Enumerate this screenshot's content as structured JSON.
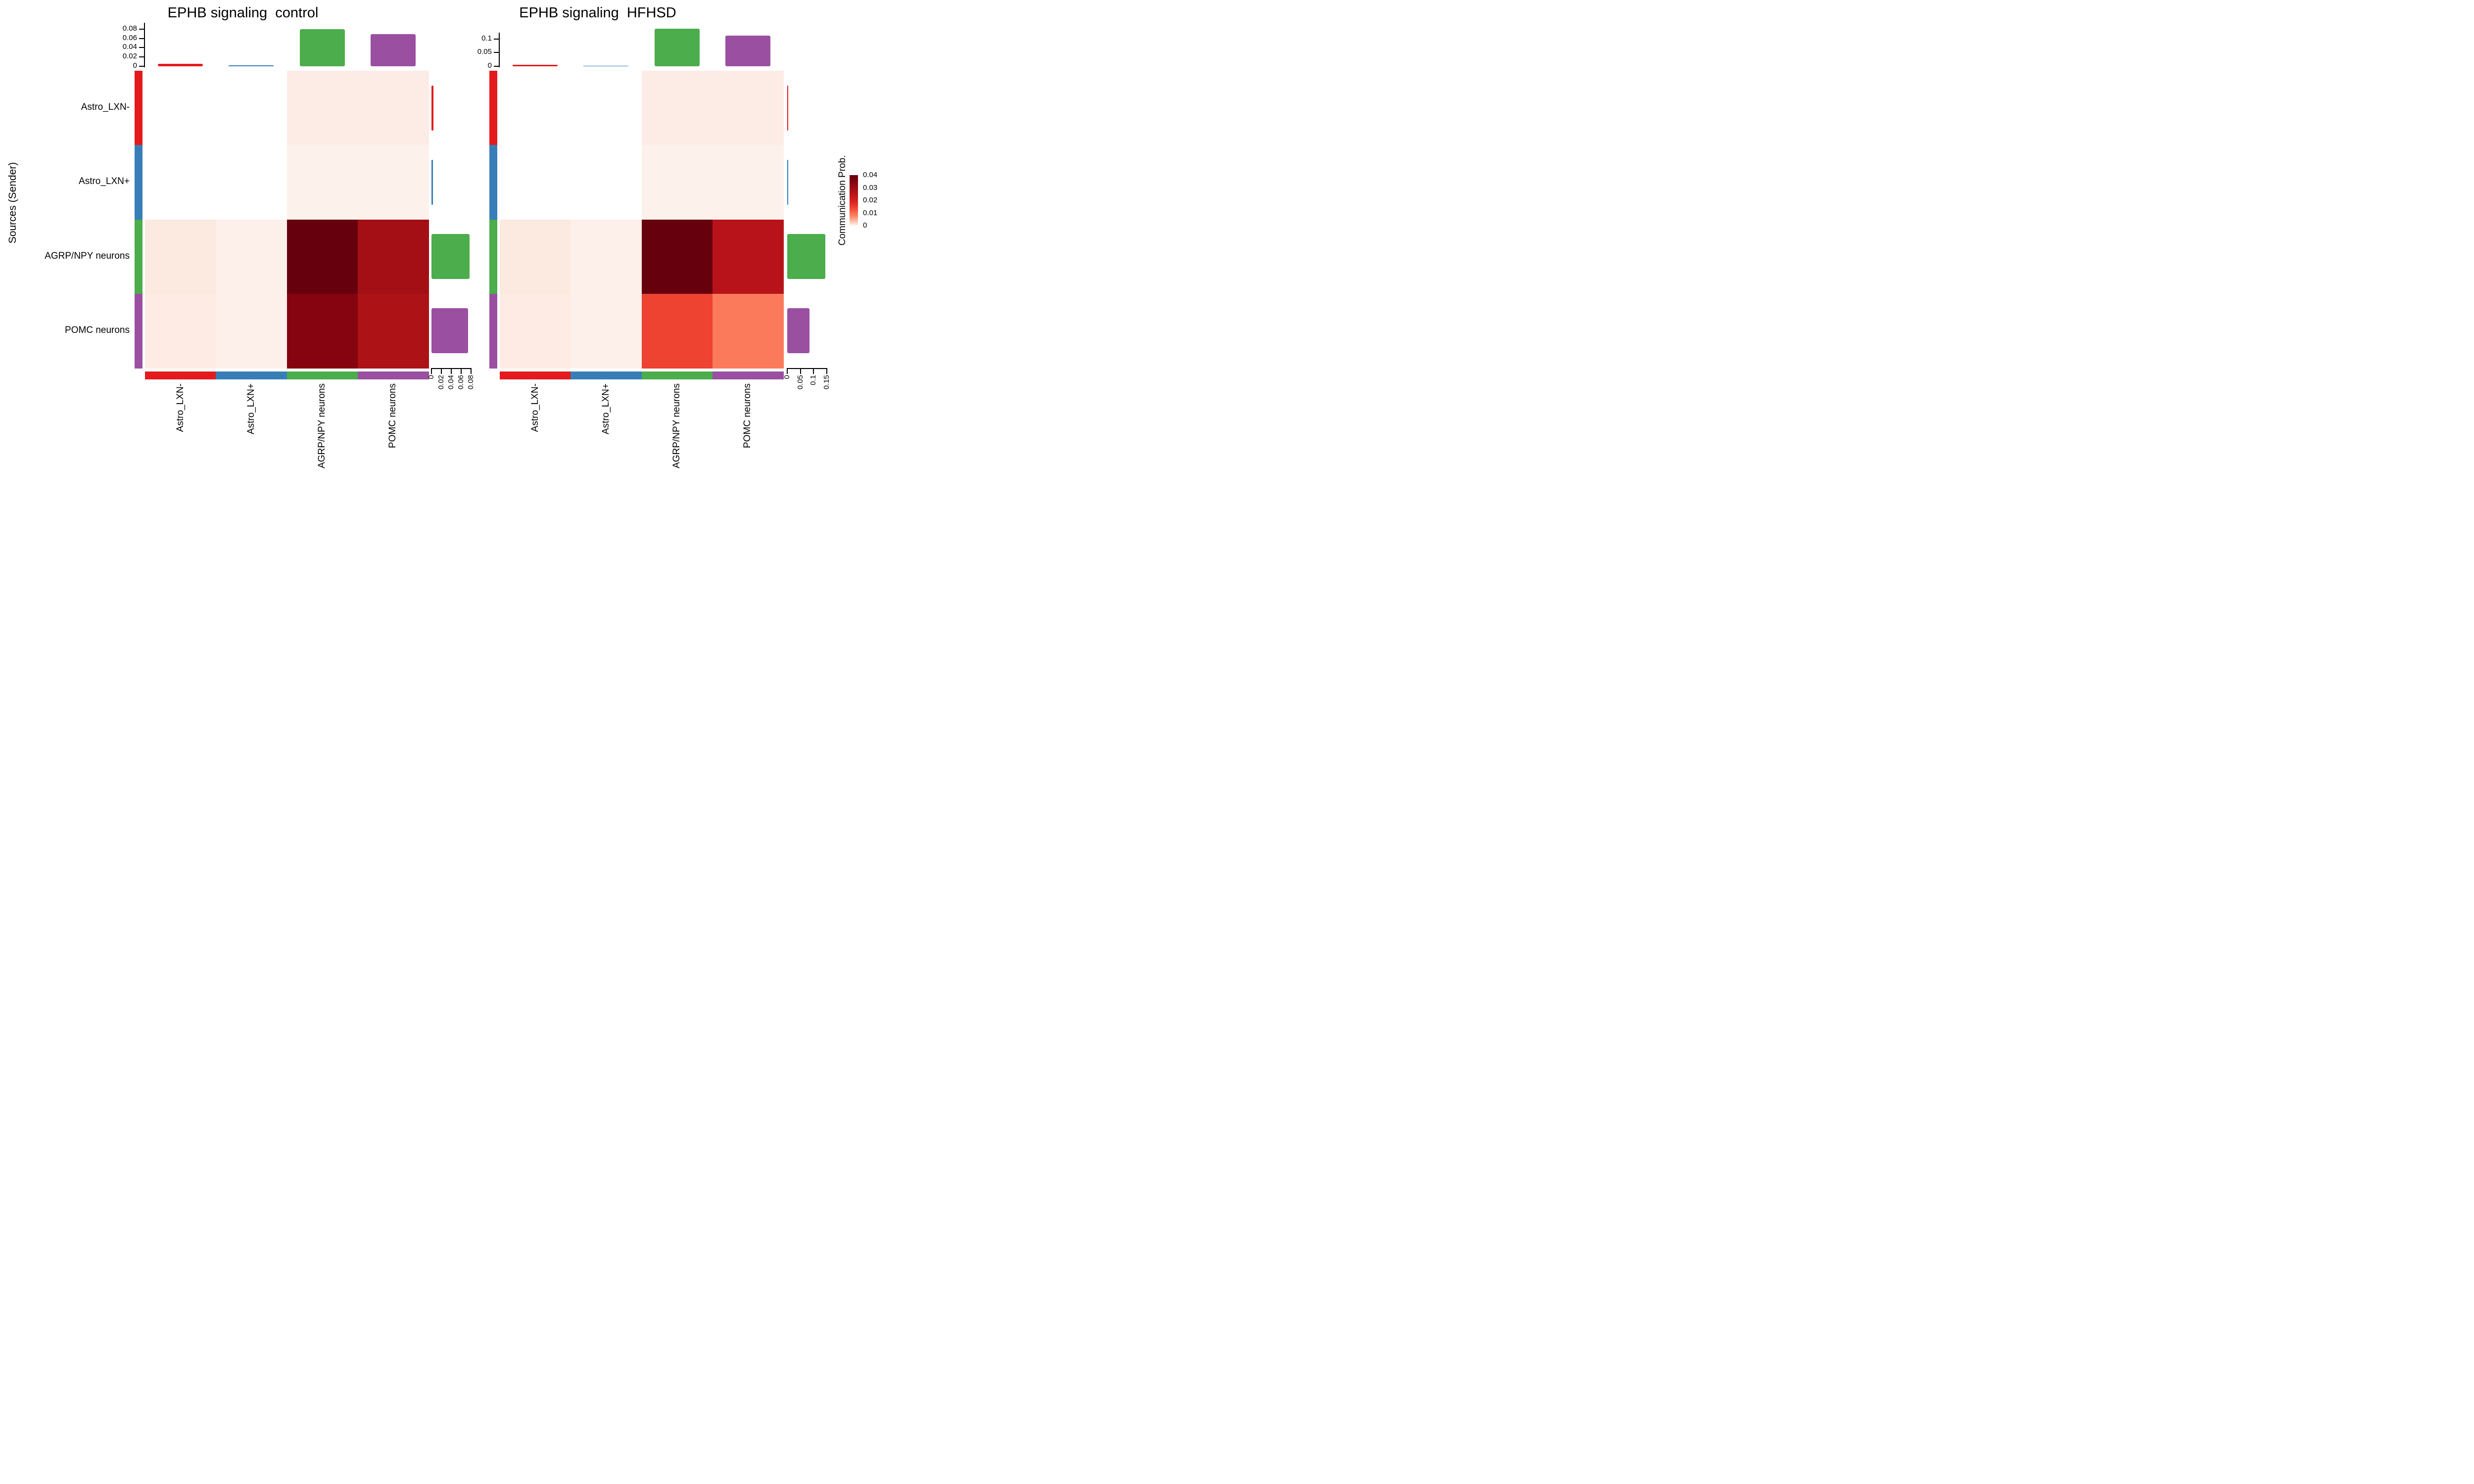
{
  "figure": {
    "y_axis_title": "Sources (Sender)",
    "legend": {
      "title": "Communication Prob.",
      "tick_labels": [
        "0.04",
        "0.03",
        "0.02",
        "0.01",
        "0"
      ],
      "max_color": "#67000d",
      "min_color": "#fff5f0"
    }
  },
  "cell_types": {
    "labels": [
      "Astro_LXN-",
      "Astro_LXN+",
      "AGRP/NPY neurons",
      "POMC neurons"
    ],
    "colors": [
      "#e41a1c",
      "#377eb8",
      "#4bad4b",
      "#9a4fa1"
    ]
  },
  "chart_data": [
    {
      "type": "heatmap",
      "condition": "control",
      "title": "EPHB signaling  control",
      "x_categories": [
        "Astro_LXN-",
        "Astro_LXN+",
        "AGRP/NPY neurons",
        "POMC neurons"
      ],
      "y_categories": [
        "Astro_LXN-",
        "Astro_LXN+",
        "AGRP/NPY neurons",
        "POMC neurons"
      ],
      "values": [
        [
          0,
          0,
          0.002,
          0.002
        ],
        [
          0,
          0,
          0.0015,
          0.0015
        ],
        [
          0.004,
          0.002,
          0.04,
          0.031
        ],
        [
          0.003,
          0.002,
          0.036,
          0.033
        ]
      ],
      "cell_colors": [
        [
          "#ffffff",
          "#ffffff",
          "#fdece6",
          "#fdece6"
        ],
        [
          "#ffffff",
          "#ffffff",
          "#fdf1ec",
          "#fdf1ec"
        ],
        [
          "#fce9e0",
          "#fdefe9",
          "#67000d",
          "#a30f15"
        ],
        [
          "#fdebe4",
          "#fdf0eb",
          "#85040f",
          "#ad1216"
        ]
      ],
      "col_sum_bars": {
        "values": [
          0.005,
          0.002,
          0.08,
          0.069
        ],
        "axis_ticks": [
          {
            "value": 0,
            "label": "0"
          },
          {
            "value": 0.02,
            "label": "0.02"
          },
          {
            "value": 0.04,
            "label": "0.04"
          },
          {
            "value": 0.06,
            "label": "0.06"
          },
          {
            "value": 0.08,
            "label": "0.08"
          }
        ]
      },
      "row_sum_bars": {
        "values": [
          0.004,
          0.003,
          0.077,
          0.074
        ],
        "axis_ticks": [
          {
            "value": 0,
            "label": "0"
          },
          {
            "value": 0.02,
            "label": "0.02"
          },
          {
            "value": 0.04,
            "label": "0.04"
          },
          {
            "value": 0.06,
            "label": "0.06"
          },
          {
            "value": 0.08,
            "label": "0.08"
          }
        ]
      }
    },
    {
      "type": "heatmap",
      "condition": "HFHSD",
      "title": "EPHB signaling  HFHSD",
      "x_categories": [
        "Astro_LXN-",
        "Astro_LXN+",
        "AGRP/NPY neurons",
        "POMC neurons"
      ],
      "y_categories": [
        "Astro_LXN-",
        "Astro_LXN+",
        "AGRP/NPY neurons",
        "POMC neurons"
      ],
      "values": [
        [
          0,
          0,
          0.003,
          0.003
        ],
        [
          0,
          0,
          0.002,
          0.002
        ],
        [
          0.005,
          0.003,
          0.085,
          0.055
        ],
        [
          0.004,
          0.003,
          0.045,
          0.033
        ]
      ],
      "cell_colors": [
        [
          "#ffffff",
          "#ffffff",
          "#fdece6",
          "#fdece6"
        ],
        [
          "#ffffff",
          "#ffffff",
          "#fdf1ec",
          "#fdf1ec"
        ],
        [
          "#fce9e0",
          "#fdefe9",
          "#67000d",
          "#b8131a"
        ],
        [
          "#fdebe4",
          "#fdf0eb",
          "#ee4331",
          "#fb7a5b"
        ]
      ],
      "col_sum_bars": {
        "values": [
          0.005,
          0.002,
          0.137,
          0.112
        ],
        "axis_ticks": [
          {
            "value": 0,
            "label": "0"
          },
          {
            "value": 0.05,
            "label": "0.05"
          },
          {
            "value": 0.1,
            "label": "0.1"
          }
        ]
      },
      "row_sum_bars": {
        "values": [
          0.004,
          0.003,
          0.145,
          0.085
        ],
        "axis_ticks": [
          {
            "value": 0,
            "label": "0"
          },
          {
            "value": 0.05,
            "label": "0.05"
          },
          {
            "value": 0.1,
            "label": "0.1"
          },
          {
            "value": 0.15,
            "label": "0.15"
          }
        ]
      }
    }
  ]
}
